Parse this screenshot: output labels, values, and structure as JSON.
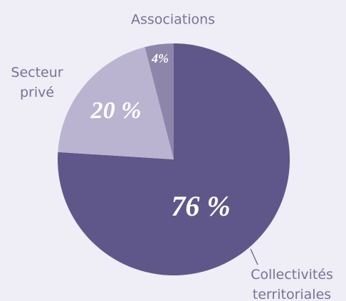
{
  "chart_data": {
    "type": "pie",
    "categories": [
      "Collectivités territoriales",
      "Secteur privé",
      "Associations"
    ],
    "values": [
      76,
      20,
      4
    ],
    "value_labels": [
      "76 %",
      "20 %",
      "4%"
    ],
    "colors": [
      "#5f5789",
      "#bbb4d0",
      "#8e86aa"
    ]
  }
}
